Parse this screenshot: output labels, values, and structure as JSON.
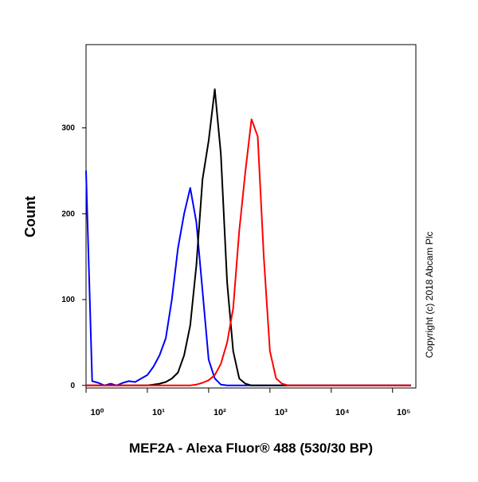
{
  "chart_data": {
    "type": "line",
    "x_label": "MEF2A - Alexa Fluor® 488 (530/30 BP)",
    "y_label": "Count",
    "copyright": "Copyright (c) 2018 Abcam Plc",
    "x_log": true,
    "xlim": [
      1,
      240000
    ],
    "ylim": [
      -3,
      397
    ],
    "xticks": [
      {
        "value": 1,
        "label": "10⁰"
      },
      {
        "value": 10,
        "label": "10¹"
      },
      {
        "value": 100,
        "label": "10²"
      },
      {
        "value": 1000,
        "label": "10³"
      },
      {
        "value": 10000,
        "label": "10⁴"
      },
      {
        "value": 100000,
        "label": "10⁵"
      }
    ],
    "yticks": [
      0,
      100,
      200,
      300
    ],
    "x": [
      1,
      1.26,
      1.58,
      2,
      2.51,
      3.16,
      3.98,
      5.01,
      6.31,
      7.94,
      10,
      12.6,
      15.8,
      20,
      25.1,
      31.6,
      39.8,
      50.1,
      63.1,
      79.4,
      100,
      126,
      158,
      200,
      251,
      316,
      398,
      501,
      631,
      794,
      1000,
      1260,
      1580,
      2000,
      2510,
      3160,
      3980,
      5010,
      6310,
      7940,
      10000,
      12600,
      15800,
      20000,
      25100,
      31600,
      39800,
      50100,
      63100,
      79400,
      100000,
      126000,
      158000,
      200000
    ],
    "series": [
      {
        "color": "#0000ff",
        "values": [
          250,
          5,
          3,
          0,
          2,
          0,
          3,
          5,
          4,
          8,
          12,
          22,
          35,
          55,
          100,
          160,
          200,
          230,
          190,
          110,
          30,
          8,
          1,
          0,
          0,
          0,
          0,
          0,
          0,
          0,
          0,
          0,
          0,
          0,
          0,
          0,
          0,
          0,
          0,
          0,
          0,
          0,
          0,
          0,
          0,
          0,
          0,
          0,
          0,
          0,
          0,
          0,
          0,
          0
        ]
      },
      {
        "color": "#000000",
        "values": [
          0,
          0,
          0,
          0,
          0,
          0,
          0,
          0,
          0,
          0,
          0,
          1,
          2,
          4,
          8,
          15,
          35,
          70,
          140,
          240,
          285,
          345,
          270,
          120,
          40,
          8,
          2,
          0,
          0,
          0,
          0,
          0,
          0,
          0,
          0,
          0,
          0,
          0,
          0,
          0,
          0,
          0,
          0,
          0,
          0,
          0,
          0,
          0,
          0,
          0,
          0,
          0,
          0,
          0
        ]
      },
      {
        "color": "#ff0000",
        "values": [
          0,
          0,
          0,
          0,
          0,
          0,
          0,
          0,
          0,
          0,
          0,
          0,
          0,
          0,
          0,
          0,
          0,
          0,
          1,
          3,
          6,
          12,
          25,
          50,
          90,
          180,
          250,
          310,
          290,
          150,
          40,
          8,
          2,
          0,
          0,
          0,
          0,
          0,
          0,
          0,
          0,
          0,
          0,
          0,
          0,
          0,
          0,
          0,
          0,
          0,
          0,
          0,
          0,
          0
        ]
      }
    ]
  }
}
